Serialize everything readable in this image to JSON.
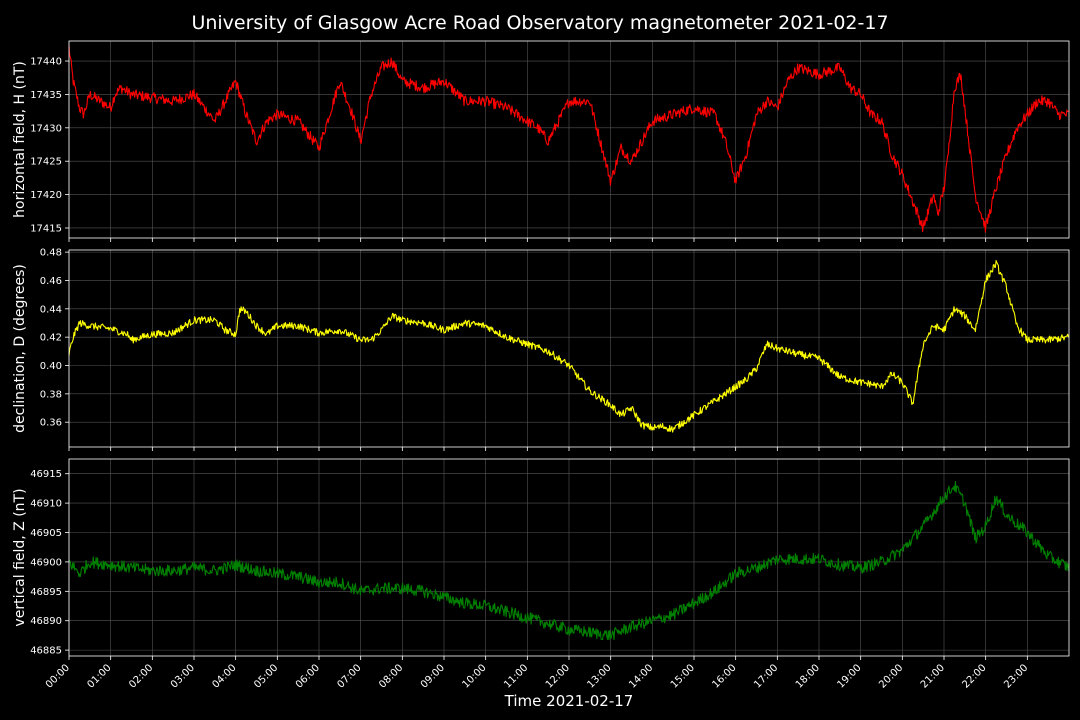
{
  "figure": {
    "title": "University of Glasgow Acre Road Observatory magnetometer 2021-02-17",
    "xlabel": "Time 2021-02-17",
    "x_ticks": [
      "00:00",
      "01:00",
      "02:00",
      "03:00",
      "04:00",
      "05:00",
      "06:00",
      "07:00",
      "08:00",
      "09:00",
      "10:00",
      "11:00",
      "12:00",
      "13:00",
      "14:00",
      "15:00",
      "16:00",
      "17:00",
      "18:00",
      "19:00",
      "20:00",
      "21:00",
      "22:00",
      "23:00"
    ],
    "background": "#000000",
    "grid_color": "#555555"
  },
  "chart_data": [
    {
      "type": "line",
      "ylabel": "horizontal field, H (nT)",
      "color": "#ff0000",
      "xlim": [
        0,
        24
      ],
      "ylim": [
        17413.5,
        17443
      ],
      "yticks": [
        17415,
        17420,
        17425,
        17430,
        17435,
        17440
      ],
      "ytick_labels": [
        "17415",
        "17420",
        "17425",
        "17430",
        "17435",
        "17440"
      ],
      "grid": true,
      "noise": 0.8,
      "x": [
        0,
        0.1,
        0.25,
        0.35,
        0.5,
        0.75,
        1,
        1.1,
        1.25,
        1.5,
        2,
        2.5,
        3,
        3.25,
        3.5,
        3.75,
        4,
        4.25,
        4.5,
        4.75,
        5,
        5.5,
        6,
        6.25,
        6.5,
        6.75,
        7,
        7.25,
        7.5,
        7.75,
        8,
        8.5,
        9,
        9.5,
        10,
        10.5,
        11,
        11.25,
        11.5,
        12,
        12.5,
        12.75,
        13,
        13.25,
        13.5,
        13.75,
        14,
        14.5,
        15,
        15.5,
        15.75,
        16,
        16.25,
        16.5,
        16.75,
        17,
        17.25,
        17.5,
        17.75,
        18,
        18.5,
        18.75,
        19,
        19.25,
        19.5,
        19.75,
        20,
        20.25,
        20.5,
        20.6,
        20.75,
        20.85,
        21,
        21.1,
        21.25,
        21.4,
        21.5,
        21.75,
        22,
        22.25,
        22.5,
        22.75,
        23,
        23.25,
        23.5,
        23.75,
        24
      ],
      "y": [
        17442,
        17437,
        17433,
        17432,
        17435,
        17434,
        17433,
        17435,
        17436,
        17435,
        17434.5,
        17434,
        17435,
        17433,
        17431,
        17434,
        17437,
        17432,
        17428,
        17431,
        17432,
        17431,
        17427,
        17432,
        17437,
        17433,
        17428,
        17435,
        17439,
        17440,
        17437,
        17436,
        17437,
        17434,
        17434,
        17433,
        17431,
        17430,
        17428,
        17434,
        17434,
        17428,
        17422,
        17427,
        17425,
        17428,
        17431,
        17432,
        17433,
        17432,
        17428,
        17422,
        17426,
        17432,
        17434,
        17433,
        17437,
        17439,
        17438.5,
        17438,
        17439,
        17436,
        17435,
        17432,
        17431,
        17426,
        17423,
        17419,
        17415,
        17417,
        17420,
        17417,
        17421,
        17426,
        17436,
        17438,
        17433,
        17420,
        17415,
        17421,
        17426,
        17430,
        17432,
        17434,
        17434,
        17432,
        17432
      ]
    },
    {
      "type": "line",
      "ylabel": "declination, D (degrees)",
      "color": "#ffff00",
      "xlim": [
        0,
        24
      ],
      "ylim": [
        0.3425,
        0.4815
      ],
      "yticks": [
        0.36,
        0.38,
        0.4,
        0.42,
        0.44,
        0.46,
        0.48
      ],
      "ytick_labels": [
        "0.36",
        "0.38",
        "0.40",
        "0.42",
        "0.44",
        "0.46",
        "0.48"
      ],
      "grid": true,
      "noise": 0.0025,
      "x": [
        0,
        0.1,
        0.25,
        0.5,
        1,
        1.4,
        1.5,
        2,
        2.5,
        3,
        3.5,
        3.75,
        4,
        4.1,
        4.25,
        4.5,
        4.75,
        5,
        5.5,
        6,
        6.5,
        7,
        7.25,
        7.5,
        7.75,
        8,
        8.5,
        9,
        9.5,
        10,
        10.5,
        11,
        11.5,
        12,
        12.5,
        13,
        13.25,
        13.5,
        13.75,
        14,
        14.25,
        14.5,
        15,
        15.5,
        16,
        16.25,
        16.5,
        16.75,
        17,
        17.5,
        18,
        18.5,
        19,
        19.25,
        19.5,
        19.75,
        20,
        20.25,
        20.5,
        20.75,
        21,
        21.25,
        21.5,
        21.75,
        22,
        22.25,
        22.5,
        22.75,
        23,
        23.5,
        24
      ],
      "y": [
        0.408,
        0.42,
        0.43,
        0.428,
        0.426,
        0.422,
        0.418,
        0.422,
        0.423,
        0.432,
        0.432,
        0.425,
        0.422,
        0.44,
        0.438,
        0.428,
        0.422,
        0.428,
        0.428,
        0.423,
        0.425,
        0.418,
        0.418,
        0.425,
        0.435,
        0.432,
        0.43,
        0.425,
        0.43,
        0.428,
        0.42,
        0.415,
        0.41,
        0.4,
        0.382,
        0.372,
        0.365,
        0.37,
        0.358,
        0.356,
        0.357,
        0.355,
        0.365,
        0.375,
        0.385,
        0.39,
        0.398,
        0.415,
        0.412,
        0.408,
        0.405,
        0.392,
        0.388,
        0.387,
        0.385,
        0.394,
        0.388,
        0.373,
        0.415,
        0.428,
        0.425,
        0.44,
        0.435,
        0.425,
        0.46,
        0.472,
        0.455,
        0.428,
        0.418,
        0.418,
        0.42
      ]
    },
    {
      "type": "line",
      "ylabel": "vertical field, Z (nT)",
      "color": "#008000",
      "xlim": [
        0,
        24
      ],
      "ylim": [
        46884,
        46917.5
      ],
      "yticks": [
        46885,
        46890,
        46895,
        46900,
        46905,
        46910,
        46915
      ],
      "ytick_labels": [
        "46885",
        "46890",
        "46895",
        "46900",
        "46905",
        "46910",
        "46915"
      ],
      "grid": true,
      "noise": 1.0,
      "x": [
        0,
        0.25,
        0.5,
        1,
        1.5,
        2,
        2.5,
        3,
        3.5,
        4,
        4.5,
        5,
        5.5,
        6,
        6.5,
        7,
        7.5,
        8,
        8.5,
        9,
        9.5,
        10,
        10.5,
        11,
        11.5,
        12,
        12.5,
        13,
        13.5,
        14,
        14.5,
        15,
        15.5,
        16,
        16.5,
        17,
        17.5,
        18,
        18.5,
        19,
        19.5,
        20,
        20.5,
        21,
        21.25,
        21.5,
        21.75,
        22,
        22.25,
        22.5,
        23,
        23.5,
        24
      ],
      "y": [
        46900,
        46898,
        46900,
        46899.5,
        46899,
        46898.5,
        46898.5,
        46899,
        46898.5,
        46899.5,
        46898.5,
        46898,
        46897.5,
        46896.5,
        46896.5,
        46895,
        46895.5,
        46895.5,
        46895,
        46894,
        46893,
        46892.5,
        46891.5,
        46890.5,
        46889.5,
        46888.5,
        46888,
        46887.5,
        46889,
        46890,
        46891,
        46893,
        46895,
        46898,
        46899,
        46900.5,
        46900.5,
        46900.5,
        46899.5,
        46899,
        46900,
        46902,
        46906,
        46911,
        46913,
        46910,
        46904,
        46906,
        46911,
        46908,
        46905,
        46901,
        46899
      ]
    }
  ]
}
